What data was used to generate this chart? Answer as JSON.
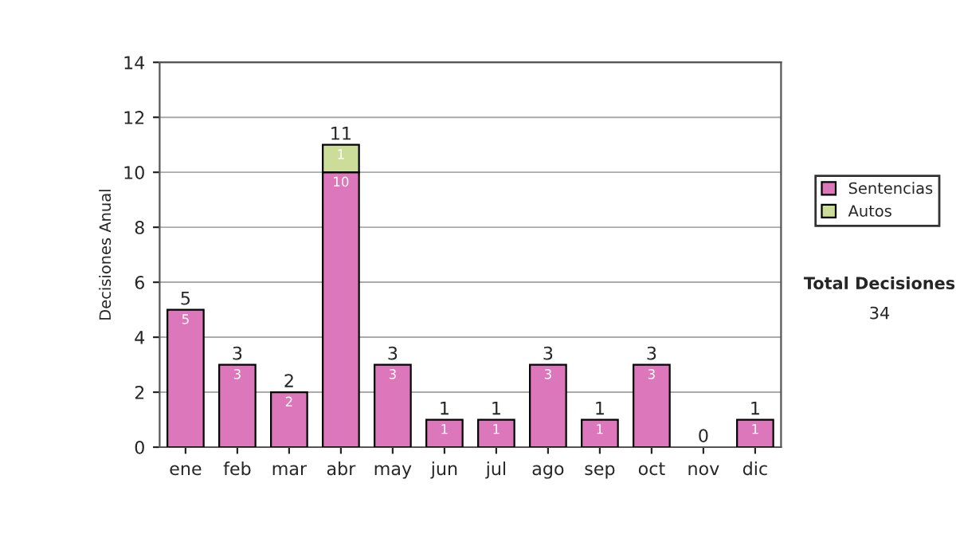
{
  "chart_data": {
    "type": "bar",
    "ylabel": "Decisiones Anual",
    "categories": [
      "ene",
      "feb",
      "mar",
      "abr",
      "may",
      "jun",
      "jul",
      "ago",
      "sep",
      "oct",
      "nov",
      "dic"
    ],
    "stacked": true,
    "series": [
      {
        "name": "Sentencias",
        "color": "#dd77bb",
        "values": [
          5,
          3,
          2,
          10,
          3,
          1,
          1,
          3,
          1,
          3,
          0,
          1
        ],
        "value_labels": [
          "5",
          "3",
          "2",
          "10",
          "3",
          "1",
          "1",
          "3",
          "1",
          "3",
          null,
          "1"
        ]
      },
      {
        "name": "Autos",
        "color": "#ccdd99",
        "values": [
          0,
          0,
          0,
          1,
          0,
          0,
          0,
          0,
          0,
          0,
          0,
          0
        ],
        "value_labels": [
          null,
          null,
          null,
          "1",
          null,
          null,
          null,
          null,
          null,
          null,
          null,
          null
        ]
      }
    ],
    "totals": [
      "5",
      "3",
      "2",
      "11",
      "3",
      "1",
      "1",
      "3",
      "1",
      "3",
      "0",
      "1"
    ],
    "ylim": [
      0,
      14
    ],
    "yticks": [
      0,
      2,
      4,
      6,
      8,
      10,
      12,
      14
    ],
    "grid": "y",
    "legend": "right",
    "annotations": [
      "Total Decisiones",
      "34"
    ]
  }
}
